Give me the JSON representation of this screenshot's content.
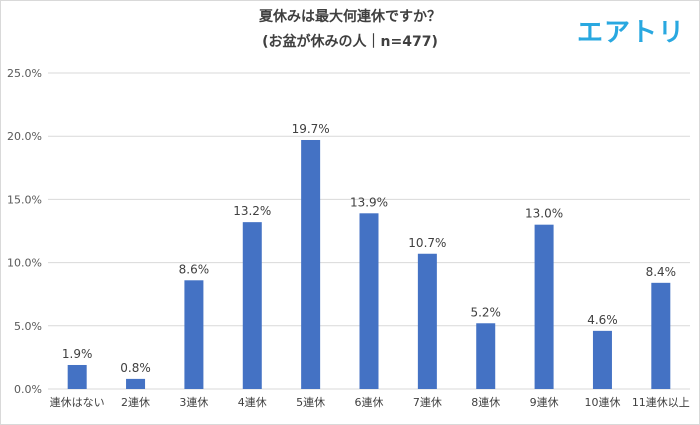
{
  "brand": {
    "logo_text": "エアトリ",
    "logo_color": "#29a8e0"
  },
  "chart_data": {
    "type": "bar",
    "title": "夏休みは最大何連休ですか？",
    "subtitle": "(お盆が休みの人｜n=477)",
    "xlabel": "",
    "ylabel": "",
    "categories": [
      "連休はない",
      "2連休",
      "3連休",
      "4連休",
      "5連休",
      "6連休",
      "7連休",
      "8連休",
      "9連休",
      "10連休",
      "11連休以上"
    ],
    "values": [
      1.9,
      0.8,
      8.6,
      13.2,
      19.7,
      13.9,
      10.7,
      5.2,
      13.0,
      4.6,
      8.4
    ],
    "value_labels": [
      "1.9%",
      "0.8%",
      "8.6%",
      "13.2%",
      "19.7%",
      "13.9%",
      "10.7%",
      "5.2%",
      "13.0%",
      "4.6%",
      "8.4%"
    ],
    "ylim": [
      0,
      25
    ],
    "y_ticks": [
      0,
      5,
      10,
      15,
      20,
      25
    ],
    "y_tick_labels": [
      "0.0%",
      "5.0%",
      "10.0%",
      "15.0%",
      "20.0%",
      "25.0%"
    ],
    "grid": true,
    "bar_color": "#4472c4",
    "grid_color": "#d9d9d9"
  }
}
